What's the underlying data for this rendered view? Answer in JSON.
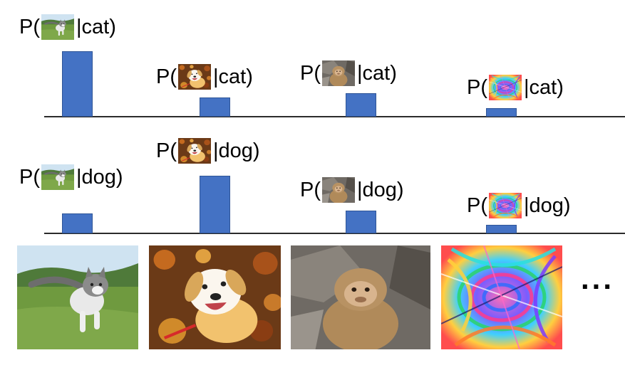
{
  "rows": [
    {
      "labels": [
        {
          "prefix": "P(",
          "suffix": "|cat)",
          "image": "kitten"
        },
        {
          "prefix": "P(",
          "suffix": "|cat)",
          "image": "dog"
        },
        {
          "prefix": "P(",
          "suffix": "|cat)",
          "image": "monkey"
        },
        {
          "prefix": "P(",
          "suffix": "|cat)",
          "image": "noise"
        }
      ],
      "values": [
        1.0,
        0.29,
        0.35,
        0.13
      ]
    },
    {
      "labels": [
        {
          "prefix": "P(",
          "suffix": "|dog)",
          "image": "kitten"
        },
        {
          "prefix": "P(",
          "suffix": "|dog)",
          "image": "dog"
        },
        {
          "prefix": "P(",
          "suffix": "|dog)",
          "image": "monkey"
        },
        {
          "prefix": "P(",
          "suffix": "|dog)",
          "image": "noise"
        }
      ],
      "values": [
        0.35,
        0.98,
        0.4,
        0.15
      ]
    }
  ],
  "images": [
    "kitten",
    "dog",
    "monkey",
    "noise"
  ],
  "ellipsis": "...",
  "colors": {
    "bar": "#4472c4",
    "axis": "#2b2b2b"
  }
}
